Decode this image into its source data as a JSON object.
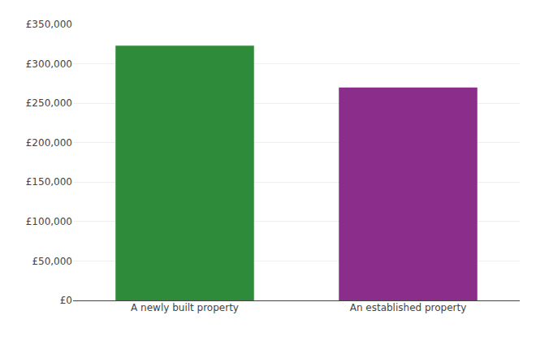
{
  "chart_data": {
    "type": "bar",
    "categories": [
      "A newly built property",
      "An established property"
    ],
    "values": [
      323000,
      270000
    ],
    "colors": [
      "#2e8b3a",
      "#8b2d8b"
    ],
    "ylim": [
      0,
      350000
    ],
    "yticks": [
      {
        "value": 0,
        "label": "£0"
      },
      {
        "value": 50000,
        "label": "£50,000"
      },
      {
        "value": 100000,
        "label": "£100,000"
      },
      {
        "value": 150000,
        "label": "£150,000"
      },
      {
        "value": 200000,
        "label": "£200,000"
      },
      {
        "value": 250000,
        "label": "£250,000"
      },
      {
        "value": 300000,
        "label": "£300,000"
      },
      {
        "value": 350000,
        "label": "£350,000"
      }
    ],
    "grid": true
  }
}
